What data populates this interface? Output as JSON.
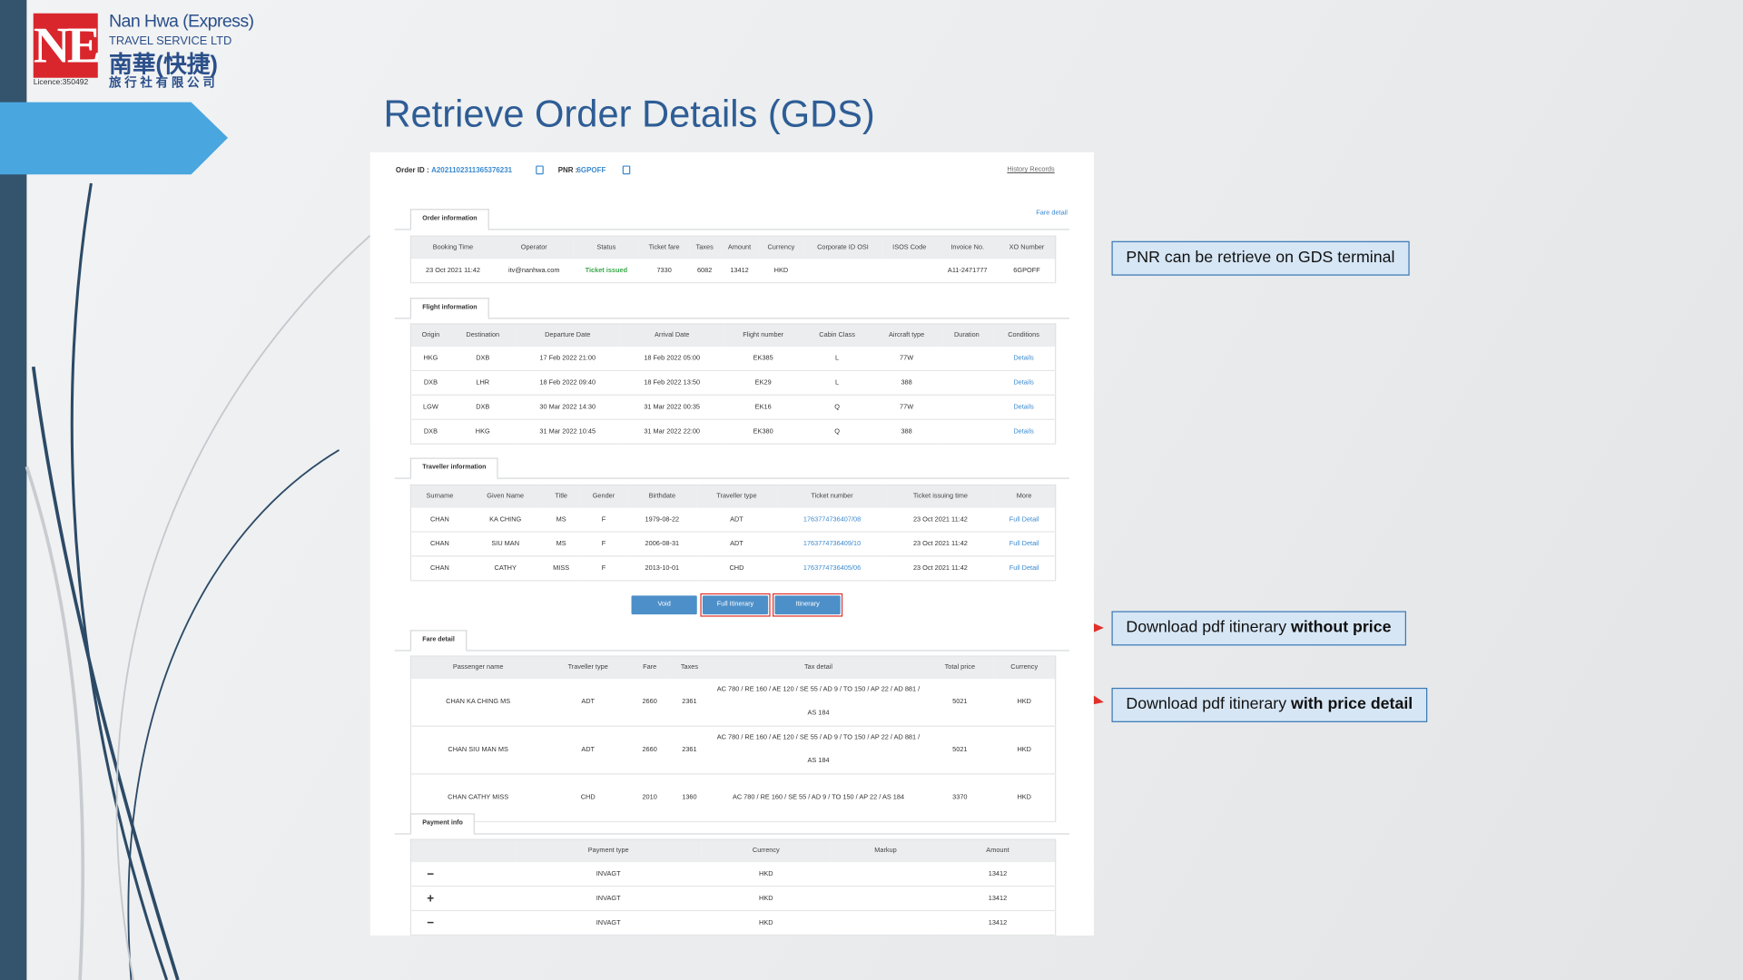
{
  "logo": {
    "mark": "NE",
    "name_en": "Nan Hwa (Express)",
    "sub_en": "TRAVEL SERVICE LTD",
    "name_zh": "南華(快捷)",
    "sub_zh": "旅 行 社 有 限 公 司",
    "licence": "Licence:350492"
  },
  "title": "Retrieve Order Details (GDS)",
  "order": {
    "id_label": "Order ID :",
    "id": "A2021102311365376231",
    "pnr_label": "PNR :",
    "pnr": "6GPOFF",
    "history": "History Records",
    "fare_link": "Fare detail"
  },
  "order_info": {
    "tab": "Order information",
    "headers": [
      "Booking Time",
      "Operator",
      "Status",
      "Ticket fare",
      "Taxes",
      "Amount",
      "Currency",
      "Corporate ID OSI",
      "ISOS Code",
      "Invoice No.",
      "XO Number"
    ],
    "rows": [
      [
        "23 Oct 2021 11:42",
        "itv@nanhwa.com",
        "Ticket issued",
        "7330",
        "6082",
        "13412",
        "HKD",
        null,
        null,
        "A11-2471777",
        "6GPOFF"
      ]
    ]
  },
  "flight_info": {
    "tab": "Flight information",
    "headers": [
      "Origin",
      "Destination",
      "Departure Date",
      "Arrival Date",
      "Flight number",
      "Cabin Class",
      "Aircraft type",
      "Duration",
      "Conditions"
    ],
    "rows": [
      [
        "HKG",
        "DXB",
        "17 Feb 2022 21:00",
        "18 Feb 2022 05:00",
        "EK385",
        "L",
        "77W",
        null,
        "Details"
      ],
      [
        "DXB",
        "LHR",
        "18 Feb 2022 09:40",
        "18 Feb 2022 13:50",
        "EK29",
        "L",
        "388",
        null,
        "Details"
      ],
      [
        "LGW",
        "DXB",
        "30 Mar 2022 14:30",
        "31 Mar 2022 00:35",
        "EK16",
        "Q",
        "77W",
        null,
        "Details"
      ],
      [
        "DXB",
        "HKG",
        "31 Mar 2022 10:45",
        "31 Mar 2022 22:00",
        "EK380",
        "Q",
        "388",
        null,
        "Details"
      ]
    ]
  },
  "traveller_info": {
    "tab": "Traveller information",
    "headers": [
      "Surname",
      "Given Name",
      "Title",
      "Gender",
      "Birthdate",
      "Traveller type",
      "Ticket number",
      "Ticket issuing time",
      "More"
    ],
    "rows": [
      [
        "CHAN",
        "KA CHING",
        "MS",
        "F",
        "1979-08-22",
        "ADT",
        "1763774736407/08",
        "23 Oct 2021 11:42",
        "Full Detail"
      ],
      [
        "CHAN",
        "SIU MAN",
        "MS",
        "F",
        "2006-08-31",
        "ADT",
        "1763774736409/10",
        "23 Oct 2021 11:42",
        "Full Detail"
      ],
      [
        "CHAN",
        "CATHY",
        "MISS",
        "F",
        "2013-10-01",
        "CHD",
        "1763774736405/06",
        "23 Oct 2021 11:42",
        "Full Detail"
      ]
    ]
  },
  "buttons": [
    "Void",
    "Full Itinerary",
    "Itinerary"
  ],
  "fare_detail": {
    "tab": "Fare detail",
    "headers": [
      "Passenger name",
      "Traveller type",
      "Fare",
      "Taxes",
      "Tax detail",
      "Total price",
      "Currency"
    ],
    "rows": [
      [
        "CHAN KA CHING MS",
        "ADT",
        "2660",
        "2361",
        "AC 780 / RE 160 / AE 120 / SE 55 / AD 9 / TO 150 / AP 22 / AD 881 / AS 184",
        "5021",
        "HKD"
      ],
      [
        "CHAN SIU MAN MS",
        "ADT",
        "2660",
        "2361",
        "AC 780 / RE 160 / AE 120 / SE 55 / AD 9 / TO 150 / AP 22 / AD 881 / AS 184",
        "5021",
        "HKD"
      ],
      [
        "CHAN CATHY MISS",
        "CHD",
        "2010",
        "1360",
        "AC 780 / RE 160 / SE 55 / AD 9 / TO 150 / AP 22 / AS 184",
        "3370",
        "HKD"
      ]
    ]
  },
  "payment_info": {
    "tab": "Payment info",
    "headers": [
      null,
      "Payment type",
      "Currency",
      "Markup",
      "Amount"
    ],
    "rows": [
      [
        "−",
        "INVAGT",
        "HKD",
        null,
        "13412"
      ],
      [
        "+",
        "INVAGT",
        "HKD",
        null,
        "13412"
      ],
      [
        "−",
        "INVAGT",
        "HKD",
        null,
        "13412"
      ]
    ]
  },
  "callouts": [
    {
      "text": "PNR can be retrieve on GDS terminal"
    },
    {
      "text": "Download pdf itinerary ",
      "bold": "without price"
    },
    {
      "text": "Download pdf itinerary ",
      "bold": "with price detail"
    }
  ]
}
